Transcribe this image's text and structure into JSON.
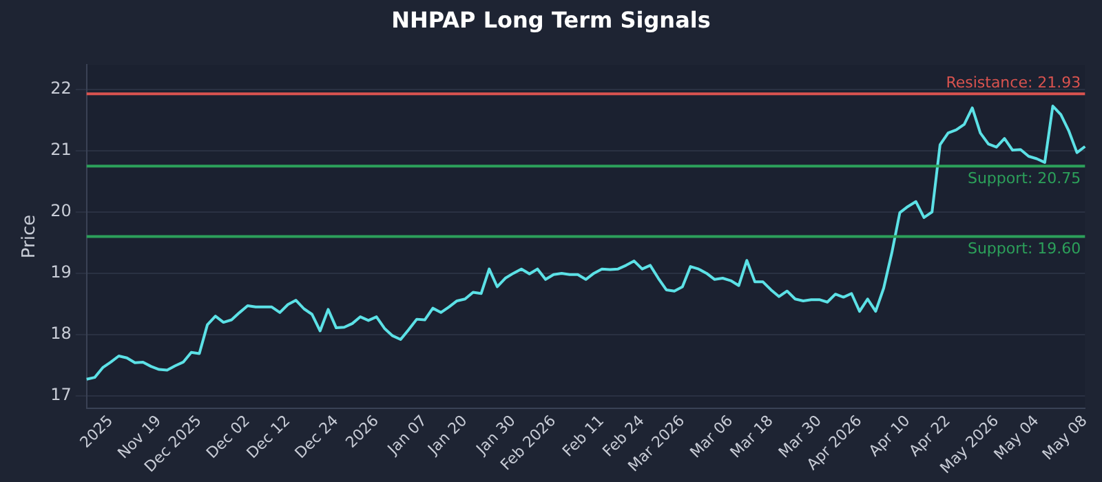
{
  "chart_data": {
    "type": "line",
    "title": "NHPAP Long Term Signals",
    "ylabel": "Price",
    "categories": [
      null,
      null,
      null,
      "2025",
      null,
      null,
      null,
      null,
      null,
      "Nov 19",
      null,
      null,
      null,
      null,
      "Dec 2025",
      null,
      null,
      null,
      null,
      null,
      "Dec 02",
      null,
      null,
      null,
      null,
      "Dec 12",
      null,
      null,
      null,
      null,
      null,
      "Dec 24",
      null,
      null,
      null,
      null,
      "2026",
      null,
      null,
      null,
      null,
      null,
      "Jan 07",
      null,
      null,
      null,
      null,
      "Jan 20",
      null,
      null,
      null,
      null,
      null,
      "Jan 30",
      null,
      null,
      null,
      null,
      "Feb 2026",
      null,
      null,
      null,
      null,
      null,
      "Feb 11",
      null,
      null,
      null,
      null,
      "Feb 24",
      null,
      null,
      null,
      null,
      "Mar 2026",
      null,
      null,
      null,
      null,
      null,
      "Mar 06",
      null,
      null,
      null,
      null,
      "Mar 18",
      null,
      null,
      null,
      null,
      null,
      "Mar 30",
      null,
      null,
      null,
      null,
      "Apr 2026",
      null,
      null,
      null,
      null,
      null,
      "Apr 10",
      null,
      null,
      null,
      null,
      "Apr 22",
      null,
      null,
      null,
      null,
      null,
      "May 2026",
      null,
      null,
      null,
      null,
      "May 04",
      null,
      null,
      null,
      null,
      null,
      "May 08"
    ],
    "series": [
      {
        "color": "#5ce1e6",
        "values": [
          17.27,
          17.3,
          17.46,
          17.55,
          17.65,
          17.62,
          17.54,
          17.55,
          17.48,
          17.43,
          17.42,
          17.49,
          17.55,
          17.71,
          17.69,
          18.16,
          18.3,
          18.2,
          18.24,
          18.36,
          18.47,
          18.45,
          18.45,
          18.45,
          18.36,
          18.49,
          18.56,
          18.42,
          18.33,
          18.06,
          18.41,
          18.11,
          18.12,
          18.18,
          18.29,
          18.23,
          18.29,
          18.1,
          17.98,
          17.92,
          18.08,
          18.25,
          18.24,
          18.43,
          18.36,
          18.45,
          18.55,
          18.58,
          18.69,
          18.67,
          19.07,
          18.78,
          18.92,
          19.0,
          19.07,
          18.99,
          19.07,
          18.9,
          18.98,
          19.0,
          18.98,
          18.98,
          18.9,
          19.0,
          19.07,
          19.06,
          19.07,
          19.13,
          19.2,
          19.07,
          19.13,
          18.92,
          18.73,
          18.71,
          18.78,
          19.11,
          19.07,
          19.0,
          18.9,
          18.92,
          18.88,
          18.8,
          19.21,
          18.86,
          18.86,
          18.73,
          18.62,
          18.71,
          18.58,
          18.55,
          18.57,
          18.57,
          18.53,
          18.66,
          18.61,
          18.67,
          18.38,
          18.58,
          18.38,
          18.76,
          19.33,
          19.99,
          20.09,
          20.17,
          19.91,
          20.0,
          21.1,
          21.29,
          21.34,
          21.43,
          21.7,
          21.29,
          21.11,
          21.06,
          21.2,
          21.01,
          21.02,
          20.91,
          20.87,
          20.81,
          21.73,
          21.59,
          21.32,
          20.97,
          21.07
        ]
      }
    ],
    "ylim": [
      16.8,
      22.4
    ],
    "yticks": [
      17,
      18,
      19,
      20,
      21,
      22
    ],
    "grid": "y",
    "marker": "none",
    "line_style": "solid",
    "ref_lines": [
      {
        "axis": "y",
        "value": 21.93,
        "label": "Resistance: 21.93",
        "color": "#d9534f"
      },
      {
        "axis": "y",
        "value": 20.75,
        "label": "Support: 20.75",
        "color": "#2ca05a"
      },
      {
        "axis": "y",
        "value": 19.6,
        "label": "Support: 19.60",
        "color": "#2ca05a"
      }
    ]
  }
}
